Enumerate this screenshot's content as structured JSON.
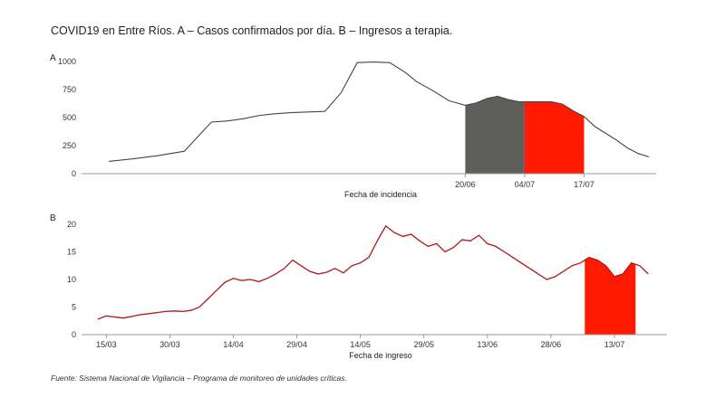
{
  "title": "COVID19 en Entre Ríos. A – Casos confirmados por día. B – Ingresos a terapia.",
  "source": "Fuente: Sistema Nacional de Vigilancia – Programa de monitoreo de unidades críticas.",
  "colors": {
    "line_a": "#444444",
    "line_b": "#b01818",
    "fill_gray": "#5e5e5c",
    "fill_red": "#ff1a00",
    "axis": "#999999"
  },
  "chart_data": [
    {
      "panel": "A",
      "type": "area",
      "xlabel": "Fecha de incidencia",
      "ylabel": "",
      "ylim": [
        0,
        1000
      ],
      "yticks": [
        "0",
        "250",
        "500",
        "750",
        "1000"
      ],
      "xticks": [
        "20/06",
        "04/07",
        "17/07"
      ],
      "grid": false,
      "x_index_range": [
        0,
        100
      ],
      "series": [
        {
          "x": [
            0,
            4,
            9,
            14,
            19,
            22,
            25,
            28,
            31,
            34,
            37,
            40,
            43,
            46,
            49,
            52,
            55,
            57,
            60,
            63,
            66,
            68,
            70,
            72,
            74,
            76,
            78,
            80,
            82,
            84,
            86,
            88,
            90,
            92,
            94,
            96,
            98,
            100
          ],
          "y": [
            110,
            130,
            160,
            200,
            460,
            470,
            490,
            520,
            535,
            545,
            550,
            555,
            720,
            990,
            995,
            990,
            900,
            820,
            740,
            650,
            610,
            630,
            670,
            690,
            660,
            640,
            640,
            640,
            640,
            620,
            560,
            510,
            420,
            360,
            300,
            230,
            180,
            150
          ]
        }
      ],
      "shaded_regions": [
        {
          "from_x": 66,
          "to_x": 77,
          "color": "gray",
          "label": "20/06 – 04/07"
        },
        {
          "from_x": 77,
          "to_x": 88,
          "color": "red",
          "label": "04/07 – 17/07"
        }
      ]
    },
    {
      "panel": "B",
      "type": "area",
      "xlabel": "Fecha de ingreso",
      "ylabel": "",
      "ylim": [
        0,
        20
      ],
      "yticks": [
        "0",
        "5",
        "10",
        "15",
        "20"
      ],
      "xticks": [
        "15/03",
        "30/03",
        "14/04",
        "29/04",
        "14/05",
        "29/05",
        "13/06",
        "28/06",
        "13/07"
      ],
      "grid": false,
      "x_date_range": [
        "13/03",
        "22/07"
      ],
      "series": [
        {
          "dates": [
            "13/03",
            "15/03",
            "17/03",
            "19/03",
            "21/03",
            "23/03",
            "25/03",
            "27/03",
            "29/03",
            "31/03",
            "02/04",
            "04/04",
            "06/04",
            "08/04",
            "10/04",
            "12/04",
            "14/04",
            "16/04",
            "18/04",
            "20/04",
            "22/04",
            "24/04",
            "26/04",
            "28/04",
            "30/04",
            "02/05",
            "04/05",
            "06/05",
            "08/05",
            "10/05",
            "12/05",
            "14/05",
            "16/05",
            "18/05",
            "20/05",
            "22/05",
            "24/05",
            "26/05",
            "28/05",
            "30/05",
            "01/06",
            "03/06",
            "05/06",
            "07/06",
            "09/06",
            "11/06",
            "13/06",
            "15/06",
            "17/06",
            "19/06",
            "21/06",
            "23/06",
            "25/06",
            "27/06",
            "29/06",
            "01/07",
            "03/07",
            "05/07",
            "07/07",
            "09/07",
            "11/07",
            "13/07",
            "15/07",
            "17/07",
            "19/07",
            "21/07"
          ],
          "values": [
            2.8,
            3.4,
            3.2,
            3.0,
            3.3,
            3.6,
            3.8,
            4.0,
            4.2,
            4.3,
            4.2,
            4.4,
            5.0,
            6.5,
            8.0,
            9.5,
            10.2,
            9.8,
            10.0,
            9.6,
            10.2,
            11.0,
            12.0,
            13.5,
            12.5,
            11.5,
            11.0,
            11.3,
            12.0,
            11.2,
            12.5,
            13.0,
            14.0,
            17.0,
            19.7,
            18.5,
            17.8,
            18.2,
            17.0,
            16.0,
            16.5,
            15.0,
            15.8,
            17.2,
            17.0,
            18.0,
            16.5,
            16.0,
            15.0,
            14.0,
            13.0,
            12.0,
            11.0,
            10.0,
            10.5,
            11.5,
            12.5,
            13.0,
            14.0,
            13.5,
            12.5,
            10.5,
            11.0,
            13.0,
            12.5,
            11.0
          ]
        }
      ],
      "shaded_regions": [
        {
          "from": "06/07",
          "to": "18/07",
          "color": "red"
        }
      ]
    }
  ]
}
